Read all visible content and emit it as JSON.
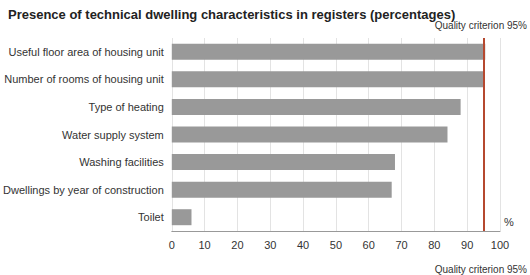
{
  "chart_data": {
    "type": "bar",
    "title": "Presence of technical dwelling characteristics in registers (percentages)",
    "orientation": "horizontal",
    "categories": [
      "Useful floor area of housing unit",
      "Number of rooms of housing unit",
      "Type of heating",
      "Water supply system",
      "Washing facilities",
      "Dwellings by year of construction",
      "Toilet"
    ],
    "values": [
      95.5,
      95,
      88,
      84,
      68,
      67,
      6
    ],
    "color": "#999999",
    "x_label": "%",
    "xlim": [
      0,
      100
    ],
    "xticks": [
      0,
      10,
      20,
      30,
      40,
      50,
      60,
      70,
      80,
      90,
      100
    ],
    "grid": true,
    "annotations": [
      {
        "value": 95,
        "label": "Quality criterion 95%",
        "color": "#b5482f"
      }
    ]
  }
}
